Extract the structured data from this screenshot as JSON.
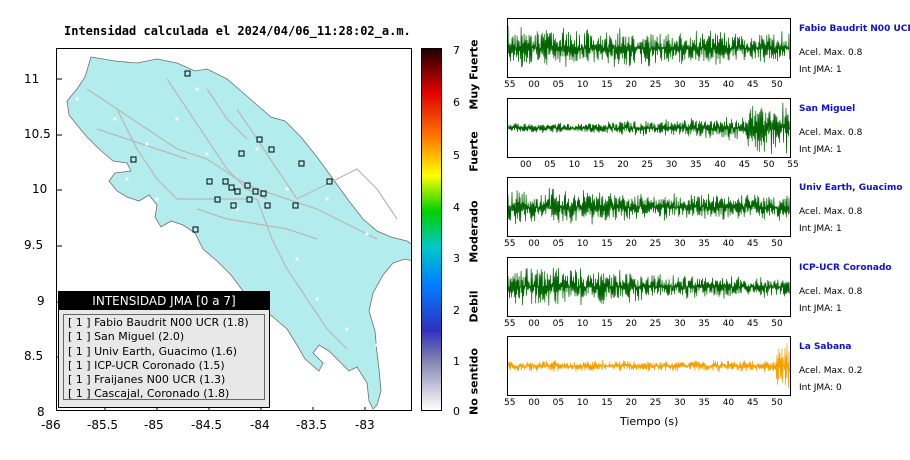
{
  "map": {
    "title": "Intensidad calculada el 2024/04/06_11:28:02_a.m.",
    "lat_ticks": [
      "11",
      "10.5",
      "10",
      "9.5",
      "9",
      "8.5",
      "8"
    ],
    "lon_ticks": [
      "-86",
      "-85.5",
      "-85",
      "-84.5",
      "-84",
      "-83.5",
      "-83"
    ],
    "land_color": "#b3ecec",
    "road_color": "#b8b8b8",
    "station_color": "#b3ecec"
  },
  "legend": {
    "title": "INTENSIDAD JMA [0 a 7]",
    "items": [
      "[ 1 ]  Fabio Baudrit N00 UCR (1.8)",
      "[ 1 ]  San Miguel (2.0)",
      "[ 1 ]  Univ Earth, Guacimo (1.6)",
      "[ 1 ]  ICP-UCR Coronado (1.5)",
      "[ 1 ]  Fraijanes N00 UCR (1.3)",
      "[ 1 ]  Cascajal, Coronado (1.8)"
    ]
  },
  "colorbar": {
    "numbers": [
      "7",
      "6",
      "5",
      "4",
      "3",
      "2",
      "1",
      "0"
    ],
    "labels": [
      "Muy Fuerte",
      "Fuerte",
      "Moderado",
      "Debil",
      "No sentido"
    ]
  },
  "stations": [
    {
      "name": "Fabio Baudrit N00 UCR",
      "acel": "Acel. Max. 0.8",
      "int": "Int JMA: 1",
      "color": "#006400",
      "ticks": [
        "55",
        "00",
        "05",
        "10",
        "15",
        "20",
        "25",
        "30",
        "35",
        "40",
        "45",
        "50"
      ]
    },
    {
      "name": "San Miguel",
      "acel": "Acel. Max. 0.8",
      "int": "Int JMA: 1",
      "color": "#006400",
      "ticks": [
        "00",
        "05",
        "10",
        "15",
        "20",
        "25",
        "30",
        "35",
        "40",
        "45",
        "50",
        "55"
      ]
    },
    {
      "name": "Univ Earth, Guacimo",
      "acel": "Acel. Max. 0.8",
      "int": "Int JMA: 1",
      "color": "#006400",
      "ticks": [
        "55",
        "00",
        "05",
        "10",
        "15",
        "20",
        "25",
        "30",
        "35",
        "40",
        "45",
        "50"
      ]
    },
    {
      "name": "ICP-UCR Coronado",
      "acel": "Acel. Max. 0.8",
      "int": "Int JMA: 1",
      "color": "#006400",
      "ticks": [
        "55",
        "00",
        "05",
        "10",
        "15",
        "20",
        "25",
        "30",
        "35",
        "40",
        "45",
        "50"
      ]
    },
    {
      "name": "La Sabana",
      "acel": "Acel. Max. 0.2",
      "int": "Int JMA: 0",
      "color": "#f5a000",
      "ticks": [
        "55",
        "00",
        "05",
        "10",
        "15",
        "20",
        "25",
        "30",
        "35",
        "40",
        "45",
        "50"
      ]
    }
  ],
  "traces": {
    "xlabel": "Tiempo (s)"
  }
}
